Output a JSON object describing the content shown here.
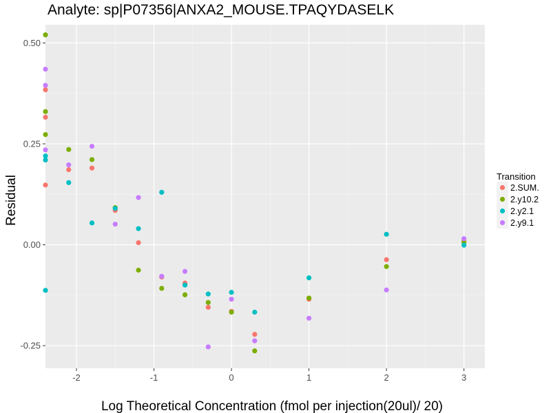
{
  "chart_data": {
    "type": "scatter",
    "title": "Analyte: sp|P07356|ANXA2_MOUSE.TPAQYDASELK",
    "xlabel": "Log Theoretical Concentration (fmol per injection(20ul)/ 20)",
    "ylabel": "Residual",
    "xlim": [
      -2.4,
      3.27
    ],
    "ylim": [
      -0.306,
      0.545
    ],
    "x_ticks": [
      -2,
      -1,
      0,
      1,
      2,
      3
    ],
    "x_tick_labels": [
      "-2",
      "-1",
      "0",
      "1",
      "2",
      "3"
    ],
    "y_ticks": [
      0.5,
      0.25,
      0.0,
      -0.25
    ],
    "y_tick_labels": [
      "0.50",
      "0.25",
      "0.00",
      "-0.25"
    ],
    "grid": true,
    "legend": {
      "title": "Transition",
      "position": "right",
      "entries": [
        "2.SUM.",
        "2.y10.2",
        "2.y2.1",
        "2.y9.1"
      ]
    },
    "series": [
      {
        "name": "2.SUM.",
        "color": "#F8766D",
        "points": [
          [
            -2.4,
            0.384
          ],
          [
            -2.4,
            0.316
          ],
          [
            -2.4,
            0.148
          ],
          [
            -2.1,
            0.186
          ],
          [
            -1.8,
            0.19
          ],
          [
            -1.5,
            0.085
          ],
          [
            -1.2,
            0.005
          ],
          [
            -0.9,
            -0.08
          ],
          [
            -0.6,
            -0.095
          ],
          [
            -0.3,
            -0.155
          ],
          [
            0.0,
            -0.165
          ],
          [
            0.3,
            -0.222
          ],
          [
            1.0,
            -0.135
          ],
          [
            2.0,
            -0.037
          ],
          [
            3.0,
            0.008
          ]
        ]
      },
      {
        "name": "2.y10.2",
        "color": "#7CAE00",
        "points": [
          [
            -2.4,
            0.52
          ],
          [
            -2.4,
            0.33
          ],
          [
            -2.4,
            0.273
          ],
          [
            -2.1,
            0.236
          ],
          [
            -1.8,
            0.211
          ],
          [
            -1.5,
            0.092
          ],
          [
            -1.2,
            -0.063
          ],
          [
            -0.9,
            -0.108
          ],
          [
            -0.6,
            -0.124
          ],
          [
            -0.3,
            -0.143
          ],
          [
            0.0,
            -0.167
          ],
          [
            0.3,
            -0.263
          ],
          [
            1.0,
            -0.132
          ],
          [
            2.0,
            -0.054
          ],
          [
            3.0,
            0.007
          ]
        ]
      },
      {
        "name": "2.y2.1",
        "color": "#00BFC4",
        "points": [
          [
            -2.4,
            0.22
          ],
          [
            -2.4,
            0.21
          ],
          [
            -2.4,
            -0.113
          ],
          [
            -2.1,
            0.154
          ],
          [
            -1.8,
            0.054
          ],
          [
            -1.5,
            0.09
          ],
          [
            -1.2,
            0.04
          ],
          [
            -0.9,
            0.13
          ],
          [
            -0.6,
            -0.1
          ],
          [
            -0.3,
            -0.122
          ],
          [
            0.0,
            -0.118
          ],
          [
            0.3,
            -0.167
          ],
          [
            1.0,
            -0.082
          ],
          [
            2.0,
            0.026
          ],
          [
            3.0,
            -0.001
          ]
        ]
      },
      {
        "name": "2.y9.1",
        "color": "#C77CFF",
        "points": [
          [
            -2.4,
            0.435
          ],
          [
            -2.4,
            0.395
          ],
          [
            -2.4,
            0.235
          ],
          [
            -2.1,
            0.198
          ],
          [
            -1.8,
            0.244
          ],
          [
            -1.5,
            0.051
          ],
          [
            -1.2,
            0.117
          ],
          [
            -0.9,
            -0.078
          ],
          [
            -0.6,
            -0.066
          ],
          [
            -0.3,
            -0.253
          ],
          [
            0.0,
            -0.135
          ],
          [
            0.3,
            -0.238
          ],
          [
            1.0,
            -0.182
          ],
          [
            2.0,
            -0.112
          ],
          [
            3.0,
            0.015
          ]
        ]
      }
    ]
  }
}
